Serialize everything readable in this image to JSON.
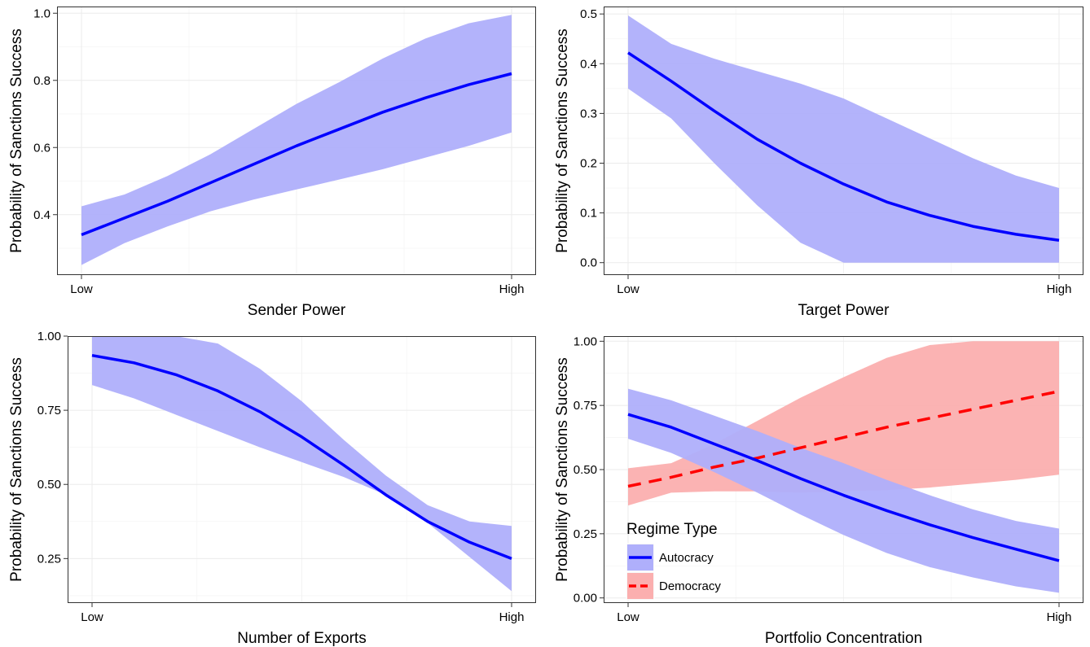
{
  "colors": {
    "autocracy_line": "#0000FF",
    "autocracy_band": "#AFAFFB",
    "democracy_line": "#FF0000",
    "democracy_band": "#FBAFAF",
    "grid": "#EBEBEB",
    "panel_border": "#333333"
  },
  "chart_data": [
    {
      "type": "line",
      "xlabel": "Sender Power",
      "ylabel": "Probability of Sanctions Success",
      "x_ticks": [
        "Low",
        "High"
      ],
      "xlim": [
        0,
        1
      ],
      "ylim": [
        0.22,
        1.02
      ],
      "y_ticks": [
        0.4,
        0.6,
        0.8,
        1.0
      ],
      "y_tick_labels": [
        "0.4",
        "0.6",
        "0.8",
        "1.0"
      ],
      "grid": true,
      "series": [
        {
          "key": "autocracy",
          "style": "solid",
          "x": [
            0,
            0.1,
            0.2,
            0.3,
            0.4,
            0.5,
            0.6,
            0.7,
            0.8,
            0.9,
            1.0
          ],
          "y": [
            0.34,
            0.39,
            0.44,
            0.495,
            0.55,
            0.605,
            0.655,
            0.705,
            0.748,
            0.787,
            0.82
          ],
          "lower": [
            0.25,
            0.315,
            0.365,
            0.41,
            0.445,
            0.475,
            0.505,
            0.535,
            0.57,
            0.605,
            0.645
          ],
          "upper": [
            0.425,
            0.46,
            0.515,
            0.58,
            0.655,
            0.73,
            0.795,
            0.865,
            0.925,
            0.97,
            0.995
          ]
        }
      ]
    },
    {
      "type": "line",
      "xlabel": "Target Power",
      "ylabel": "Probability of Sanctions Success",
      "x_ticks": [
        "Low",
        "High"
      ],
      "xlim": [
        0,
        1
      ],
      "ylim": [
        -0.025,
        0.515
      ],
      "y_ticks": [
        0.0,
        0.1,
        0.2,
        0.3,
        0.4,
        0.5
      ],
      "y_tick_labels": [
        "0.0",
        "0.1",
        "0.2",
        "0.3",
        "0.4",
        "0.5"
      ],
      "grid": true,
      "series": [
        {
          "key": "autocracy",
          "style": "solid",
          "x": [
            0,
            0.1,
            0.2,
            0.3,
            0.4,
            0.5,
            0.6,
            0.7,
            0.8,
            0.9,
            1.0
          ],
          "y": [
            0.422,
            0.365,
            0.305,
            0.248,
            0.2,
            0.158,
            0.122,
            0.095,
            0.073,
            0.057,
            0.045
          ],
          "lower": [
            0.35,
            0.29,
            0.2,
            0.115,
            0.04,
            0.0,
            0.0,
            0.0,
            0.0,
            0.0,
            0.0
          ],
          "upper": [
            0.497,
            0.44,
            0.41,
            0.385,
            0.36,
            0.33,
            0.29,
            0.25,
            0.21,
            0.175,
            0.15
          ]
        }
      ]
    },
    {
      "type": "line",
      "xlabel": "Number of Exports",
      "ylabel": "Probability of Sanctions Success",
      "x_ticks": [
        "Low",
        "High"
      ],
      "xlim": [
        0,
        1
      ],
      "ylim": [
        0.1,
        1.0
      ],
      "y_ticks": [
        0.25,
        0.5,
        0.75,
        1.0
      ],
      "y_tick_labels": [
        "0.25",
        "0.50",
        "0.75",
        "1.00"
      ],
      "grid": true,
      "series": [
        {
          "key": "autocracy",
          "style": "solid",
          "x": [
            0,
            0.1,
            0.2,
            0.3,
            0.4,
            0.5,
            0.6,
            0.7,
            0.8,
            0.9,
            1.0
          ],
          "y": [
            0.935,
            0.91,
            0.87,
            0.815,
            0.745,
            0.66,
            0.565,
            0.465,
            0.375,
            0.305,
            0.25
          ],
          "lower": [
            0.835,
            0.79,
            0.735,
            0.68,
            0.625,
            0.575,
            0.525,
            0.465,
            0.37,
            0.255,
            0.14
          ],
          "upper": [
            1.0,
            1.0,
            1.0,
            0.975,
            0.89,
            0.78,
            0.65,
            0.53,
            0.43,
            0.375,
            0.36
          ]
        }
      ]
    },
    {
      "type": "line",
      "xlabel": "Portfolio Concentration",
      "ylabel": "Probability of Sanctions Success",
      "x_ticks": [
        "Low",
        "High"
      ],
      "xlim": [
        0,
        1
      ],
      "ylim": [
        -0.02,
        1.02
      ],
      "y_ticks": [
        0.0,
        0.25,
        0.5,
        0.75,
        1.0
      ],
      "y_tick_labels": [
        "0.00",
        "0.25",
        "0.50",
        "0.75",
        "1.00"
      ],
      "grid": true,
      "legend": {
        "title": "Regime Type",
        "position": "bottom-left",
        "entries": [
          "Autocracy",
          "Democracy"
        ]
      },
      "series": [
        {
          "name": "Democracy",
          "key": "democracy",
          "style": "dashed",
          "x": [
            0,
            0.1,
            0.2,
            0.3,
            0.4,
            0.5,
            0.6,
            0.7,
            0.8,
            0.9,
            1.0
          ],
          "y": [
            0.435,
            0.47,
            0.51,
            0.545,
            0.585,
            0.625,
            0.665,
            0.7,
            0.735,
            0.77,
            0.805
          ],
          "lower": [
            0.36,
            0.41,
            0.415,
            0.415,
            0.41,
            0.415,
            0.42,
            0.43,
            0.445,
            0.46,
            0.48
          ],
          "upper": [
            0.505,
            0.525,
            0.6,
            0.69,
            0.78,
            0.86,
            0.935,
            0.985,
            1.0,
            1.0,
            1.0
          ]
        },
        {
          "name": "Autocracy",
          "key": "autocracy",
          "style": "solid",
          "x": [
            0,
            0.1,
            0.2,
            0.3,
            0.4,
            0.5,
            0.6,
            0.7,
            0.8,
            0.9,
            1.0
          ],
          "y": [
            0.715,
            0.665,
            0.6,
            0.535,
            0.465,
            0.4,
            0.34,
            0.285,
            0.235,
            0.19,
            0.145
          ],
          "lower": [
            0.62,
            0.565,
            0.49,
            0.41,
            0.325,
            0.245,
            0.175,
            0.12,
            0.08,
            0.045,
            0.02
          ],
          "upper": [
            0.815,
            0.77,
            0.71,
            0.65,
            0.585,
            0.525,
            0.46,
            0.4,
            0.345,
            0.3,
            0.27
          ]
        }
      ]
    }
  ]
}
